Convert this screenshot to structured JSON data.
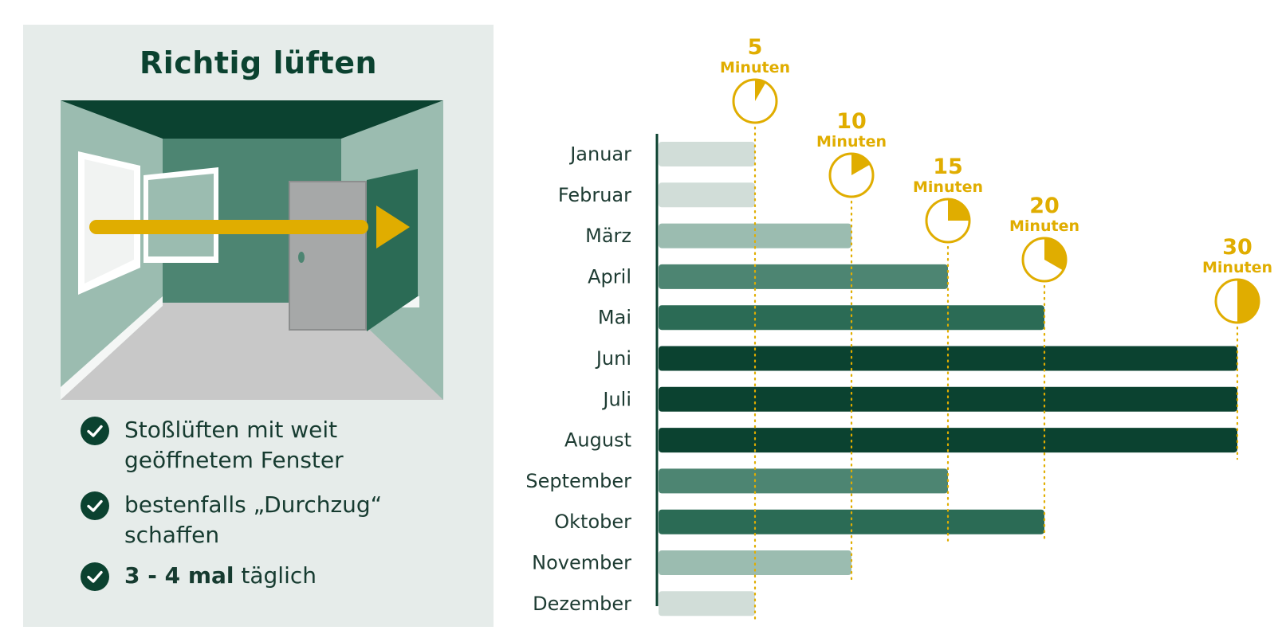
{
  "panel": {
    "title": "Richtig lüften",
    "tips": [
      {
        "text": "Stoßlüften mit weit geöffnetem Fenster"
      },
      {
        "text": "bestenfalls „Durchzug“ schaffen"
      },
      {
        "bold": "3 - 4 mal",
        "text": " täglich"
      }
    ]
  },
  "colors": {
    "dark_green": "#0b4230",
    "mid_green": "#2b6b55",
    "teal_green": "#4d8572",
    "sage": "#9bbcb0",
    "pale": "#d1ddd8",
    "accent_yellow": "#e0ad00",
    "panel_bg": "#e6ecea"
  },
  "chart_data": {
    "type": "bar",
    "orientation": "horizontal",
    "title": "",
    "categories": [
      "Januar",
      "Februar",
      "März",
      "April",
      "Mai",
      "Juni",
      "Juli",
      "August",
      "September",
      "Oktober",
      "November",
      "Dezember"
    ],
    "values": [
      5,
      5,
      10,
      15,
      20,
      30,
      30,
      30,
      15,
      20,
      10,
      5
    ],
    "unit": "Minuten",
    "markers": [
      {
        "value": 5,
        "label": "5",
        "unit": "Minuten"
      },
      {
        "value": 10,
        "label": "10",
        "unit": "Minuten"
      },
      {
        "value": 15,
        "label": "15",
        "unit": "Minuten"
      },
      {
        "value": 20,
        "label": "20",
        "unit": "Minuten"
      },
      {
        "value": 30,
        "label": "30",
        "unit": "Minuten"
      }
    ],
    "xlim": [
      0,
      30
    ],
    "grid": false,
    "legend": "none",
    "value_colors": {
      "5": "#d1ddd8",
      "10": "#9bbcb0",
      "15": "#4d8572",
      "20": "#2b6b55",
      "30": "#0b4230"
    }
  }
}
